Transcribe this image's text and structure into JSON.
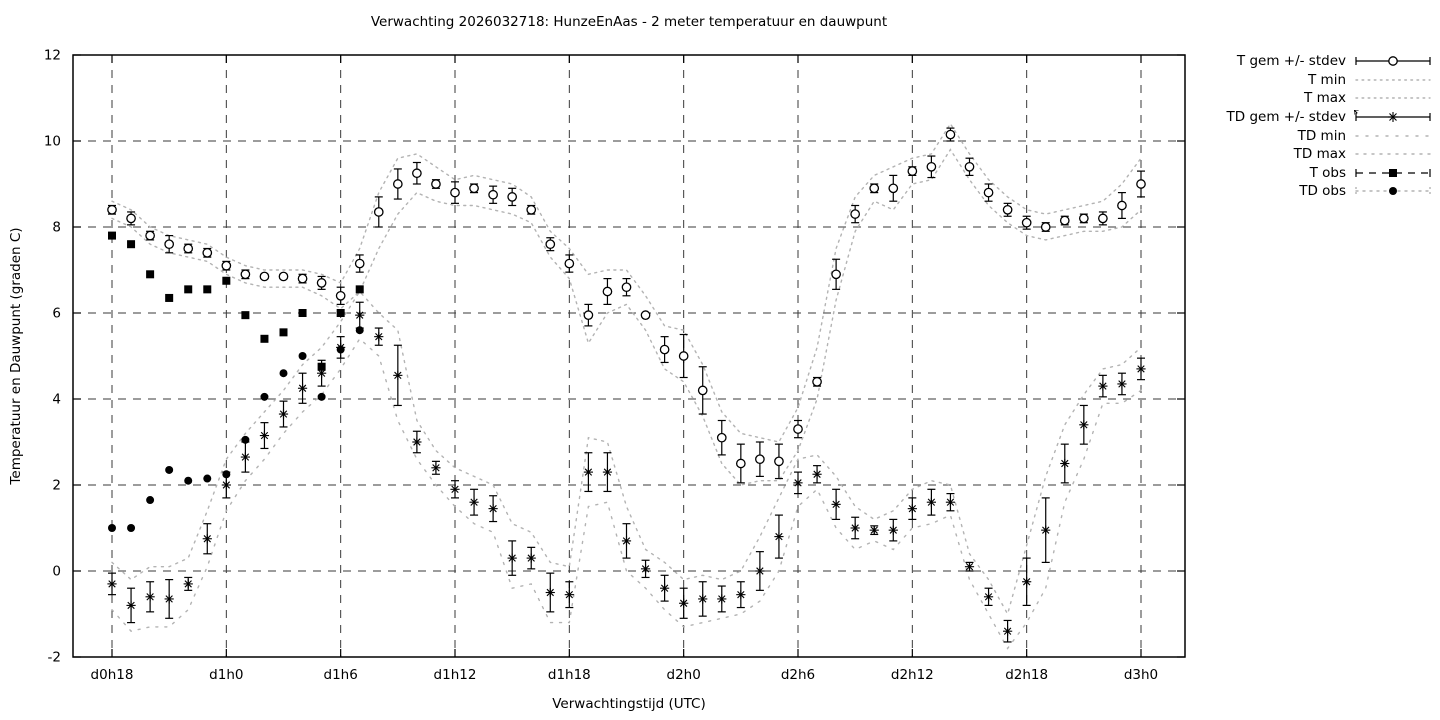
{
  "title": "Verwachting 2026032718: HunzeEnAas - 2 meter temperatuur en dauwpunt",
  "axes": {
    "x_label": "Verwachtingstijd (UTC)",
    "y_label": "Temperatuur en Dauwpunt (graden C)",
    "y_tick_values": [
      12,
      10,
      8,
      6,
      4,
      2,
      0,
      -2
    ],
    "x_ticks": [
      {
        "label": "d0h18",
        "hour": 18
      },
      {
        "label": "d1h0",
        "hour": 24
      },
      {
        "label": "d1h6",
        "hour": 30
      },
      {
        "label": "d1h12",
        "hour": 36
      },
      {
        "label": "d1h18",
        "hour": 42
      },
      {
        "label": "d2h0",
        "hour": 48
      },
      {
        "label": "d2h6",
        "hour": 54
      },
      {
        "label": "d2h12",
        "hour": 60
      },
      {
        "label": "d2h18",
        "hour": 66
      },
      {
        "label": "d3h0",
        "hour": 72
      }
    ]
  },
  "legend": [
    {
      "label": "T gem +/- stdev",
      "style": "errorbar-circle"
    },
    {
      "label": "T min",
      "style": "dots-fine"
    },
    {
      "label": "T max",
      "style": "dots-fine"
    },
    {
      "label": "TD gem +/- stdev",
      "style": "errorbar-asterisk"
    },
    {
      "label": "TD min",
      "style": "dots-sparse"
    },
    {
      "label": "TD max",
      "style": "dots-medium"
    },
    {
      "label": "T obs",
      "style": "dash-square"
    },
    {
      "label": "TD obs",
      "style": "dots-circle"
    }
  ],
  "colors": {
    "foreground": "#000000",
    "envelope": "#b3b3b3",
    "grid": "#3a3a3a",
    "background": "#ffffff"
  },
  "chart_data": {
    "type": "line",
    "title": "Verwachting 2026032718: HunzeEnAas - 2 meter temperatuur en dauwpunt",
    "xlabel": "Verwachtingstijd (UTC)",
    "ylabel": "Temperatuur en Dauwpunt (graden C)",
    "ylim": [
      -2,
      12
    ],
    "x_hour_start": 18,
    "x_hour_end": 72,
    "grid": "dashed both axes",
    "legend_position": "outside top right",
    "series": [
      {
        "name": "T gem +/- stdev",
        "kind": "errorbars+open-circle",
        "hour_start": 18,
        "values": [
          8.4,
          8.2,
          7.8,
          7.6,
          7.5,
          7.4,
          7.1,
          6.9,
          6.85,
          6.85,
          6.8,
          6.7,
          6.4,
          7.15,
          8.35,
          9.0,
          9.25,
          9.0,
          8.8,
          8.9,
          8.75,
          8.7,
          8.4,
          7.6,
          7.15,
          5.95,
          6.5,
          6.6,
          5.95,
          5.15,
          5.0,
          4.2,
          3.1,
          2.5,
          2.6,
          2.55,
          3.3,
          4.4,
          6.9,
          8.3,
          8.9,
          8.9,
          9.3,
          9.4,
          10.15,
          9.4,
          8.8,
          8.4,
          8.1,
          8.0,
          8.15,
          8.2,
          8.2,
          8.5,
          9.0
        ],
        "stdev": [
          0.1,
          0.15,
          0.1,
          0.2,
          0.1,
          0.1,
          0.1,
          0.1,
          0.05,
          0.05,
          0.1,
          0.15,
          0.2,
          0.2,
          0.35,
          0.35,
          0.25,
          0.1,
          0.25,
          0.1,
          0.2,
          0.2,
          0.1,
          0.15,
          0.2,
          0.25,
          0.3,
          0.2,
          0.05,
          0.3,
          0.5,
          0.55,
          0.4,
          0.45,
          0.4,
          0.4,
          0.2,
          0.1,
          0.35,
          0.2,
          0.1,
          0.3,
          0.1,
          0.25,
          0.15,
          0.2,
          0.2,
          0.15,
          0.15,
          0.1,
          0.1,
          0.1,
          0.15,
          0.3,
          0.3
        ]
      },
      {
        "name": "T min",
        "kind": "dotted-line",
        "hour_start": 18,
        "values": [
          8.2,
          8.0,
          7.6,
          7.4,
          7.3,
          7.2,
          6.9,
          6.7,
          6.6,
          6.6,
          6.6,
          6.4,
          6.1,
          6.5,
          7.5,
          8.3,
          8.8,
          8.6,
          8.5,
          8.5,
          8.4,
          8.3,
          8.1,
          7.3,
          6.8,
          5.3,
          6.0,
          6.2,
          5.6,
          4.7,
          4.4,
          3.6,
          2.5,
          2.0,
          2.1,
          2.1,
          2.8,
          4.0,
          6.3,
          7.9,
          8.6,
          8.4,
          9.0,
          9.1,
          9.8,
          9.1,
          8.5,
          8.1,
          7.8,
          7.7,
          7.8,
          7.9,
          7.9,
          8.0,
          8.4
        ]
      },
      {
        "name": "T max",
        "kind": "dotted-line",
        "hour_start": 18,
        "values": [
          8.6,
          8.4,
          8.0,
          7.8,
          7.7,
          7.6,
          7.3,
          7.1,
          7.0,
          7.0,
          7.0,
          6.9,
          6.7,
          7.5,
          8.8,
          9.6,
          9.7,
          9.4,
          9.1,
          9.2,
          9.1,
          9.0,
          8.7,
          7.9,
          7.5,
          6.9,
          7.0,
          7.0,
          6.4,
          5.7,
          5.6,
          4.8,
          3.7,
          3.2,
          3.1,
          3.0,
          3.8,
          5.2,
          7.5,
          8.7,
          9.2,
          9.4,
          9.6,
          9.7,
          10.4,
          9.7,
          9.1,
          8.7,
          8.4,
          8.3,
          8.4,
          8.5,
          8.6,
          9.0,
          9.6
        ]
      },
      {
        "name": "TD gem +/- stdev",
        "kind": "errorbars+asterisk",
        "hour_start": 18,
        "values": [
          -0.3,
          -0.8,
          -0.6,
          -0.65,
          -0.3,
          0.75,
          2.0,
          2.65,
          3.15,
          3.65,
          4.25,
          4.6,
          5.2,
          5.95,
          5.45,
          4.55,
          3.0,
          2.4,
          1.9,
          1.6,
          1.45,
          0.3,
          0.3,
          -0.5,
          -0.55,
          2.3,
          2.3,
          0.7,
          0.05,
          -0.4,
          -0.75,
          -0.65,
          -0.65,
          -0.55,
          0.0,
          0.8,
          2.05,
          2.25,
          1.55,
          1.0,
          0.95,
          0.95,
          1.45,
          1.6,
          1.6,
          0.1,
          -0.6,
          -1.4,
          -0.25,
          0.95,
          2.5,
          3.4,
          4.3,
          4.35,
          4.7
        ],
        "stdev": [
          0.25,
          0.4,
          0.35,
          0.45,
          0.15,
          0.35,
          0.3,
          0.35,
          0.3,
          0.3,
          0.35,
          0.3,
          0.25,
          0.3,
          0.2,
          0.7,
          0.25,
          0.15,
          0.2,
          0.3,
          0.3,
          0.4,
          0.25,
          0.45,
          0.3,
          0.45,
          0.45,
          0.4,
          0.2,
          0.3,
          0.35,
          0.4,
          0.3,
          0.3,
          0.45,
          0.5,
          0.25,
          0.2,
          0.35,
          0.25,
          0.1,
          0.25,
          0.25,
          0.3,
          0.2,
          0.1,
          0.2,
          0.25,
          0.55,
          0.75,
          0.45,
          0.45,
          0.25,
          0.25,
          0.25
        ]
      },
      {
        "name": "TD min",
        "kind": "dotted-line-sparse",
        "hour_start": 18,
        "values": [
          -0.9,
          -1.4,
          -1.3,
          -1.3,
          -0.9,
          0.1,
          1.4,
          2.1,
          2.6,
          3.2,
          3.7,
          4.1,
          4.7,
          5.4,
          5.0,
          3.5,
          2.6,
          2.0,
          1.5,
          1.1,
          0.9,
          -0.4,
          -0.3,
          -1.2,
          -1.2,
          1.5,
          1.6,
          0.0,
          -0.4,
          -0.9,
          -1.3,
          -1.2,
          -1.1,
          -1.0,
          -0.7,
          0.0,
          1.5,
          1.9,
          1.0,
          0.5,
          0.7,
          0.5,
          1.0,
          1.1,
          1.3,
          -0.2,
          -1.0,
          -1.8,
          -1.2,
          -0.4,
          1.6,
          2.6,
          3.9,
          3.9,
          4.2
        ]
      },
      {
        "name": "TD max",
        "kind": "dotted-line-medium",
        "hour_start": 18,
        "values": [
          0.2,
          -0.2,
          0.1,
          0.1,
          0.3,
          1.4,
          2.6,
          3.2,
          3.7,
          4.2,
          4.8,
          5.2,
          5.8,
          6.5,
          6.0,
          5.6,
          3.5,
          2.8,
          2.4,
          2.2,
          2.0,
          1.1,
          0.9,
          0.2,
          0.1,
          3.1,
          3.0,
          1.5,
          0.5,
          0.2,
          -0.2,
          -0.1,
          -0.2,
          0.0,
          0.8,
          1.7,
          2.6,
          2.7,
          2.2,
          1.5,
          1.2,
          1.4,
          1.9,
          2.1,
          2.0,
          0.4,
          -0.2,
          -1.0,
          0.6,
          2.2,
          3.4,
          4.1,
          4.7,
          4.8,
          5.2
        ]
      },
      {
        "name": "T obs",
        "kind": "filled-square",
        "hour_start": 18,
        "values": [
          7.8,
          7.6,
          6.9,
          6.35,
          6.55,
          6.55,
          6.75,
          5.95,
          5.4,
          5.55,
          6.0,
          4.75,
          6.0,
          6.55
        ]
      },
      {
        "name": "TD obs",
        "kind": "filled-circle",
        "hour_start": 18,
        "values": [
          1.0,
          1.0,
          1.65,
          2.35,
          2.1,
          2.15,
          2.25,
          3.05,
          4.05,
          4.6,
          5.0,
          4.05,
          5.15,
          5.6
        ]
      }
    ]
  }
}
